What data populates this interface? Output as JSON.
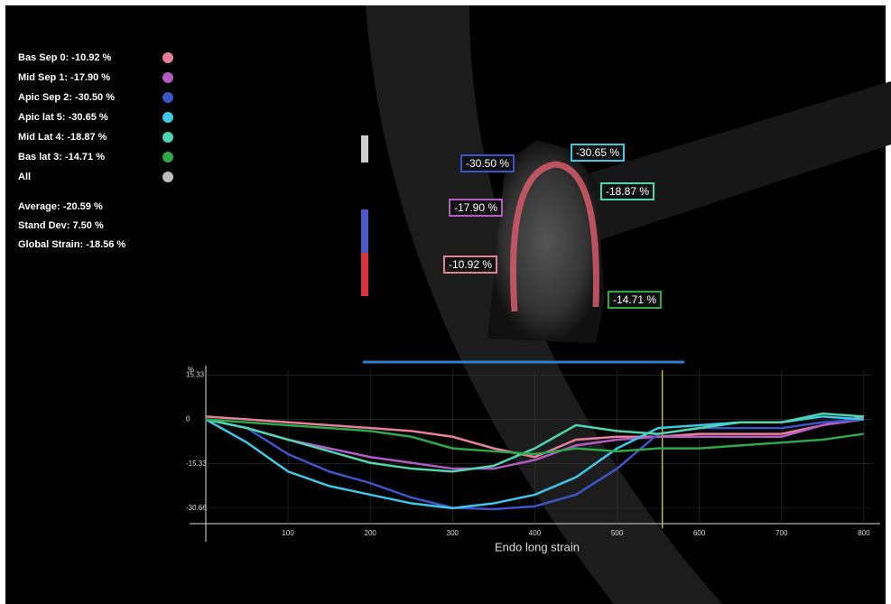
{
  "chart_data": {
    "type": "line",
    "x_label": "Endo long strain",
    "y_unit": "%",
    "all_label": "All",
    "x": [
      0,
      50,
      100,
      150,
      200,
      250,
      300,
      350,
      400,
      450,
      500,
      550,
      600,
      650,
      700,
      750,
      800
    ],
    "xlim": [
      0,
      810
    ],
    "xticks": [
      100,
      200,
      300,
      400,
      500,
      600,
      700,
      800
    ],
    "ylim": [
      -36,
      17
    ],
    "yticks": [
      15.33,
      0,
      -15.33,
      -30.66
    ],
    "cursor_x": 555,
    "series": [
      {
        "name": "Bas Sep 0: -10.92 %",
        "color": "#e8809c",
        "values": [
          1,
          0,
          -1,
          -2,
          -3,
          -4,
          -6,
          -10,
          -13,
          -7,
          -6,
          -6,
          -5,
          -5,
          -5,
          -2,
          1
        ]
      },
      {
        "name": "Mid Sep 1: -17.90 %",
        "color": "#b45cc4",
        "values": [
          0,
          -3,
          -7,
          -10,
          -13,
          -15,
          -17,
          -17,
          -14,
          -9,
          -7,
          -6,
          -6,
          -6,
          -6,
          -2,
          0
        ]
      },
      {
        "name": "Apic Sep 2: -30.50 %",
        "color": "#3d55c8",
        "values": [
          0,
          -3,
          -12,
          -18,
          -22,
          -27,
          -30.5,
          -31,
          -30,
          -26,
          -17,
          -5,
          -3,
          -3,
          -3,
          -1,
          0
        ]
      },
      {
        "name": "Apic lat 5: -30.65 %",
        "color": "#3ec8e8",
        "values": [
          0,
          -8,
          -18,
          -23,
          -26,
          -29,
          -30.65,
          -29,
          -26,
          -20,
          -10,
          -3,
          -2,
          -1,
          -1,
          1,
          0
        ]
      },
      {
        "name": "Mid Lat 4: -18.87 %",
        "color": "#4fd6b0",
        "values": [
          0,
          -3,
          -7,
          -11,
          -15,
          -17,
          -18,
          -16,
          -10,
          -2,
          -4,
          -5,
          -3,
          -1,
          -1,
          2,
          1
        ]
      },
      {
        "name": "Bas lat 3: -14.71 %",
        "color": "#2ea84a",
        "values": [
          0,
          -1,
          -2,
          -3,
          -4,
          -6,
          -10,
          -11,
          -12,
          -10,
          -11,
          -10,
          -10,
          -9,
          -8,
          -7,
          -5
        ]
      }
    ]
  },
  "stats": [
    "Average: -20.59 %",
    "Stand Dev: 7.50 %",
    "Global Strain: -18.56 %"
  ],
  "image_labels": [
    {
      "text": "-30.50 %",
      "color": "#3d55c8"
    },
    {
      "text": "-30.65 %",
      "color": "#3ec8e8"
    },
    {
      "text": "-18.87 %",
      "color": "#4fd6b0"
    },
    {
      "text": "-17.90 %",
      "color": "#b45cc4"
    },
    {
      "text": "-10.92 %",
      "color": "#e8809c"
    },
    {
      "text": "-14.71 %",
      "color": "#2ea84a"
    }
  ]
}
